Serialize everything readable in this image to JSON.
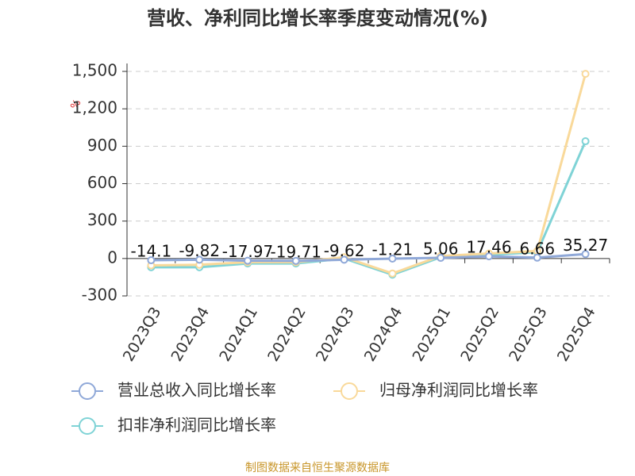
{
  "chart_data": {
    "type": "line",
    "title": "营收、净利同比增长率季度变动情况(%)",
    "y_label": "%",
    "source": "制图数据来自恒生聚源数据库",
    "categories": [
      "2023Q3",
      "2023Q4",
      "2024Q1",
      "2024Q2",
      "2024Q3",
      "2024Q4",
      "2025Q1",
      "2025Q2",
      "2025Q3",
      "2025Q4"
    ],
    "series": [
      {
        "name": "营业总收入同比增长率",
        "color": "#8fa8d8",
        "values": [
          -14.1,
          -9.82,
          -17.97,
          -19.71,
          -9.62,
          -1.21,
          5.06,
          17.46,
          6.66,
          35.27
        ],
        "show_labels": true
      },
      {
        "name": "归母净利润同比增长率",
        "color": "#f9d99a",
        "values": [
          -55,
          -50,
          -30,
          -30,
          10,
          -120,
          20,
          40,
          60,
          1480
        ]
      },
      {
        "name": "扣非净利润同比增长率",
        "color": "#7fd3d6",
        "values": [
          -70,
          -70,
          -40,
          -40,
          0,
          -130,
          10,
          30,
          50,
          940
        ]
      }
    ],
    "ylim": [
      -300,
      1500
    ],
    "yticks": [
      -300,
      0,
      300,
      600,
      900,
      {
        "value": 1200,
        "label": "1,200"
      },
      {
        "value": 1500,
        "label": "1,500"
      }
    ],
    "grid": true
  }
}
